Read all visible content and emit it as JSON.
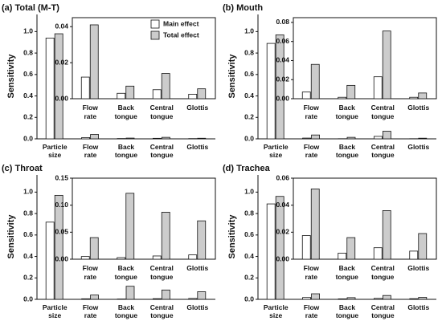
{
  "chart_data": [
    {
      "type": "bar",
      "title": "(a) Total (M-T)",
      "y_label": "Sensitivity",
      "categories": [
        "Particle size",
        "Flow rate",
        "Back tongue",
        "Central tongue",
        "Glottis"
      ],
      "series": [
        {
          "color": "#ffffff",
          "values": [
            0.94,
            0.012,
            0.003,
            0.005,
            0.0025
          ]
        },
        {
          "color": "#cccccc",
          "values": [
            0.98,
            0.041,
            0.007,
            0.014,
            0.0055
          ]
        }
      ],
      "ylim": [
        0,
        1.16
      ],
      "yticks": [
        {
          "value": 0,
          "label": "0.0"
        },
        0.2,
        0.4,
        0.6,
        0.8,
        {
          "value": 1,
          "label": "1.0"
        }
      ],
      "inset": {
        "categories": [
          "Flow rate",
          "Back tongue",
          "Central tongue",
          "Glottis"
        ],
        "series": [
          {
            "name": "Main effect",
            "color": "#ffffff",
            "values": [
              0.012,
              0.003,
              0.005,
              0.0025
            ]
          },
          {
            "name": "Total effect",
            "color": "#cccccc",
            "values": [
              0.041,
              0.007,
              0.014,
              0.0055
            ]
          }
        ],
        "ylim": [
          0,
          0.045
        ],
        "yticks": [
          {
            "value": 0,
            "label": "0.00"
          },
          0.02,
          0.04
        ],
        "legend": "upper right"
      }
    },
    {
      "type": "bar",
      "title": "(b) Mouth",
      "y_label": "Sensitivity",
      "categories": [
        "Particle size",
        "Flow rate",
        "Back tongue",
        "Central tongue",
        "Glottis"
      ],
      "series": [
        {
          "color": "#ffffff",
          "values": [
            0.89,
            0.007,
            0.0015,
            0.023,
            0.0015
          ]
        },
        {
          "color": "#cccccc",
          "values": [
            0.97,
            0.036,
            0.014,
            0.071,
            0.006
          ]
        }
      ],
      "ylim": [
        0,
        1.16
      ],
      "yticks": [
        {
          "value": 0,
          "label": "0.0"
        },
        0.2,
        0.4,
        0.6,
        0.8,
        {
          "value": 1,
          "label": "1.0"
        }
      ],
      "inset": {
        "categories": [
          "Flow rate",
          "Back tongue",
          "Central tongue",
          "Glottis"
        ],
        "series": [
          {
            "color": "#ffffff",
            "values": [
              0.007,
              0.0015,
              0.023,
              0.0015
            ]
          },
          {
            "color": "#cccccc",
            "values": [
              0.036,
              0.014,
              0.071,
              0.006
            ]
          }
        ],
        "ylim": [
          0,
          0.085
        ],
        "yticks": [
          {
            "value": 0,
            "label": "0.00"
          },
          0.02,
          0.04,
          0.06,
          0.08
        ]
      }
    },
    {
      "type": "bar",
      "title": "(c) Throat",
      "y_label": "Sensitivity",
      "categories": [
        "Particle size",
        "Flow rate",
        "Back tongue",
        "Central tongue",
        "Glottis"
      ],
      "series": [
        {
          "color": "#ffffff",
          "values": [
            0.72,
            0.005,
            0.003,
            0.006,
            0.008
          ]
        },
        {
          "color": "#cccccc",
          "values": [
            0.97,
            0.04,
            0.122,
            0.087,
            0.071
          ]
        }
      ],
      "ylim": [
        0,
        1.16
      ],
      "yticks": [
        {
          "value": 0,
          "label": "0.0"
        },
        0.2,
        0.4,
        0.6,
        0.8,
        {
          "value": 1,
          "label": "1.0"
        }
      ],
      "inset": {
        "categories": [
          "Flow rate",
          "Back tongue",
          "Central tongue",
          "Glottis"
        ],
        "series": [
          {
            "color": "#ffffff",
            "values": [
              0.005,
              0.003,
              0.006,
              0.008
            ]
          },
          {
            "color": "#cccccc",
            "values": [
              0.04,
              0.122,
              0.087,
              0.071
            ]
          }
        ],
        "ylim": [
          0,
          0.15
        ],
        "yticks": [
          {
            "value": 0,
            "label": "0.00"
          },
          0.05,
          {
            "value": 0.1,
            "label": "0.10"
          },
          0.15
        ]
      }
    },
    {
      "type": "bar",
      "title": "(d) Trachea",
      "y_label": "Sensitivity",
      "categories": [
        "Particle size",
        "Flow rate",
        "Back tongue",
        "Central tongue",
        "Glottis"
      ],
      "series": [
        {
          "color": "#ffffff",
          "values": [
            0.89,
            0.0175,
            0.0045,
            0.0085,
            0.006
          ]
        },
        {
          "color": "#cccccc",
          "values": [
            0.96,
            0.052,
            0.016,
            0.036,
            0.019
          ]
        }
      ],
      "ylim": [
        0,
        1.16
      ],
      "yticks": [
        {
          "value": 0,
          "label": "0.0"
        },
        0.2,
        0.4,
        0.6,
        0.8,
        {
          "value": 1,
          "label": "1.0"
        }
      ],
      "inset": {
        "categories": [
          "Flow rate",
          "Back tongue",
          "Central tongue",
          "Glottis"
        ],
        "series": [
          {
            "color": "#ffffff",
            "values": [
              0.0175,
              0.0045,
              0.0085,
              0.006
            ]
          },
          {
            "color": "#cccccc",
            "values": [
              0.052,
              0.016,
              0.036,
              0.019
            ]
          }
        ],
        "ylim": [
          0,
          0.06
        ],
        "yticks": [
          {
            "value": 0,
            "label": "0.00"
          },
          0.02,
          0.04,
          0.06
        ]
      }
    }
  ]
}
